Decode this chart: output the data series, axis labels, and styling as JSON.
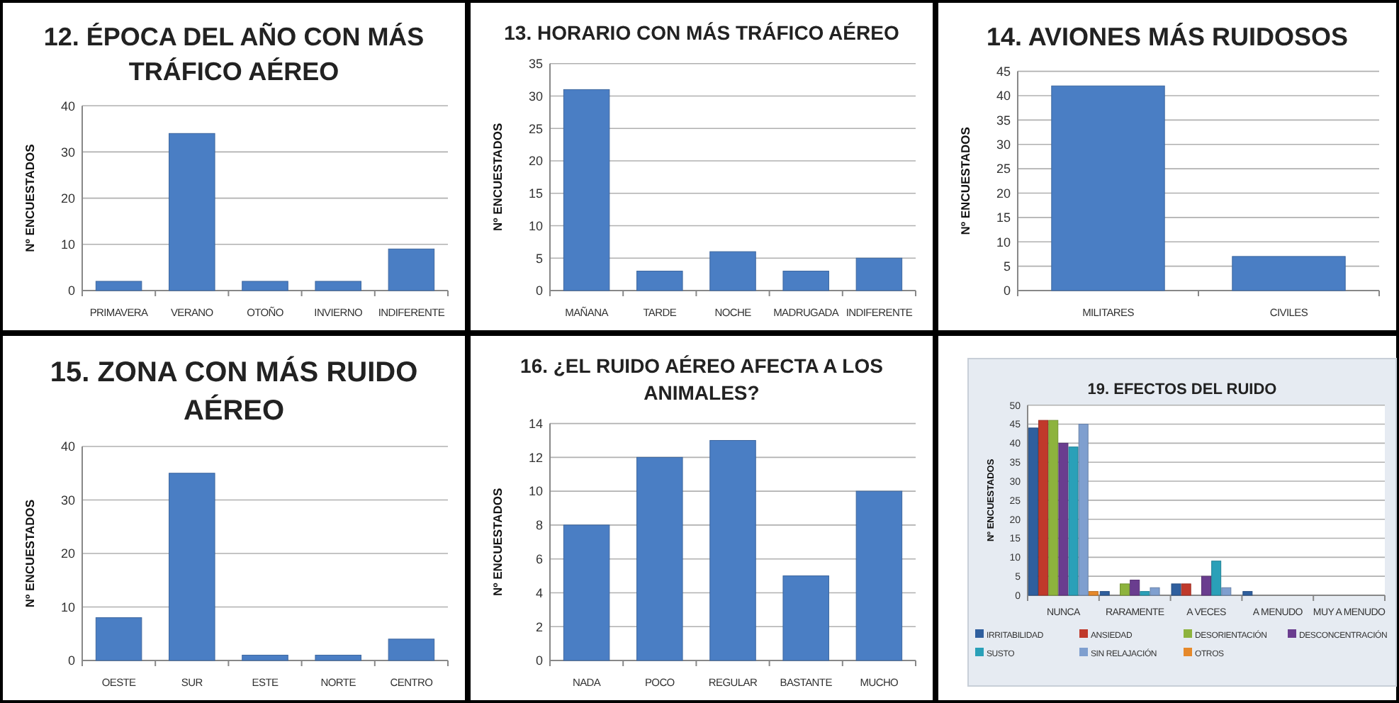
{
  "chart_data": [
    {
      "type": "bar",
      "title": "12. ÉPOCA DEL AÑO CON MÁS TRÁFICO AÉREO",
      "ylabel": "Nº ENCUESTADOS",
      "categories": [
        "PRIMAVERA",
        "VERANO",
        "OTOÑO",
        "INVIERNO",
        "INDIFERENTE"
      ],
      "values": [
        2,
        34,
        2,
        2,
        9
      ],
      "color": "#4a7ec4",
      "ylim": [
        0,
        40
      ],
      "yticks": [
        0,
        10,
        20,
        30,
        40
      ],
      "grid": "y"
    },
    {
      "type": "bar",
      "title": "13. HORARIO CON MÁS TRÁFICO AÉREO",
      "ylabel": "Nº ENCUESTADOS",
      "categories": [
        "MAÑANA",
        "TARDE",
        "NOCHE",
        "MADRUGADA",
        "INDIFERENTE"
      ],
      "values": [
        31,
        3,
        6,
        3,
        5
      ],
      "color": "#4a7ec4",
      "ylim": [
        0,
        35
      ],
      "yticks": [
        0,
        5,
        10,
        15,
        20,
        25,
        30,
        35
      ],
      "grid": "y"
    },
    {
      "type": "bar",
      "title": "14. AVIONES MÁS RUIDOSOS",
      "ylabel": "Nº ENCUESTADOS",
      "categories": [
        "MILITARES",
        "CIVILES"
      ],
      "values": [
        42,
        7
      ],
      "color": "#4a7ec4",
      "ylim": [
        0,
        45
      ],
      "yticks": [
        0,
        5,
        10,
        15,
        20,
        25,
        30,
        35,
        40,
        45
      ],
      "grid": "y"
    },
    {
      "type": "bar",
      "title": "15. ZONA CON MÁS RUIDO AÉREO",
      "ylabel": "Nº ENCUESTADOS",
      "categories": [
        "OESTE",
        "SUR",
        "ESTE",
        "NORTE",
        "CENTRO"
      ],
      "values": [
        8,
        35,
        1,
        1,
        4
      ],
      "color": "#4a7ec4",
      "ylim": [
        0,
        40
      ],
      "yticks": [
        0,
        10,
        20,
        30,
        40
      ],
      "grid": "y"
    },
    {
      "type": "bar",
      "title": "16. ¿EL RUIDO AÉREO AFECTA A LOS ANIMALES?",
      "ylabel": "Nº ENCUESTADOS",
      "categories": [
        "NADA",
        "POCO",
        "REGULAR",
        "BASTANTE",
        "MUCHO"
      ],
      "values": [
        8,
        12,
        13,
        5,
        10
      ],
      "color": "#4a7ec4",
      "ylim": [
        0,
        14
      ],
      "yticks": [
        0,
        2,
        4,
        6,
        8,
        10,
        12,
        14
      ],
      "grid": "y"
    },
    {
      "type": "bar",
      "title": "19.  EFECTOS DEL RUIDO",
      "ylabel": "Nº ENCUESTADOS",
      "categories": [
        "NUNCA",
        "RARAMENTE",
        "A VECES",
        "A MENUDO",
        "MUY A MENUDO"
      ],
      "ylim": [
        0,
        50
      ],
      "yticks": [
        0,
        5,
        10,
        15,
        20,
        25,
        30,
        35,
        40,
        45,
        50
      ],
      "grid": "y",
      "legend": "bottom",
      "series": [
        {
          "name": "IRRITABILIDAD",
          "color": "#2f5f9e",
          "values": [
            44,
            1,
            3,
            1,
            0
          ]
        },
        {
          "name": "ANSIEDAD",
          "color": "#c0392b",
          "values": [
            46,
            0,
            3,
            0,
            0
          ]
        },
        {
          "name": "DESORIENTACIÓN",
          "color": "#8db33d",
          "values": [
            46,
            3,
            0,
            0,
            0
          ]
        },
        {
          "name": "DESCONCENTRACIÓN",
          "color": "#6a3d8f",
          "values": [
            40,
            4,
            5,
            0,
            0
          ]
        },
        {
          "name": "SUSTO",
          "color": "#2aa0b8",
          "values": [
            39,
            1,
            9,
            0,
            0
          ]
        },
        {
          "name": "SIN RELAJACIÓN",
          "color": "#7f9fcf",
          "values": [
            45,
            2,
            2,
            0,
            0
          ]
        },
        {
          "name": "OTROS",
          "color": "#e6892b",
          "values": [
            1,
            0,
            0,
            0,
            0
          ]
        }
      ]
    }
  ]
}
